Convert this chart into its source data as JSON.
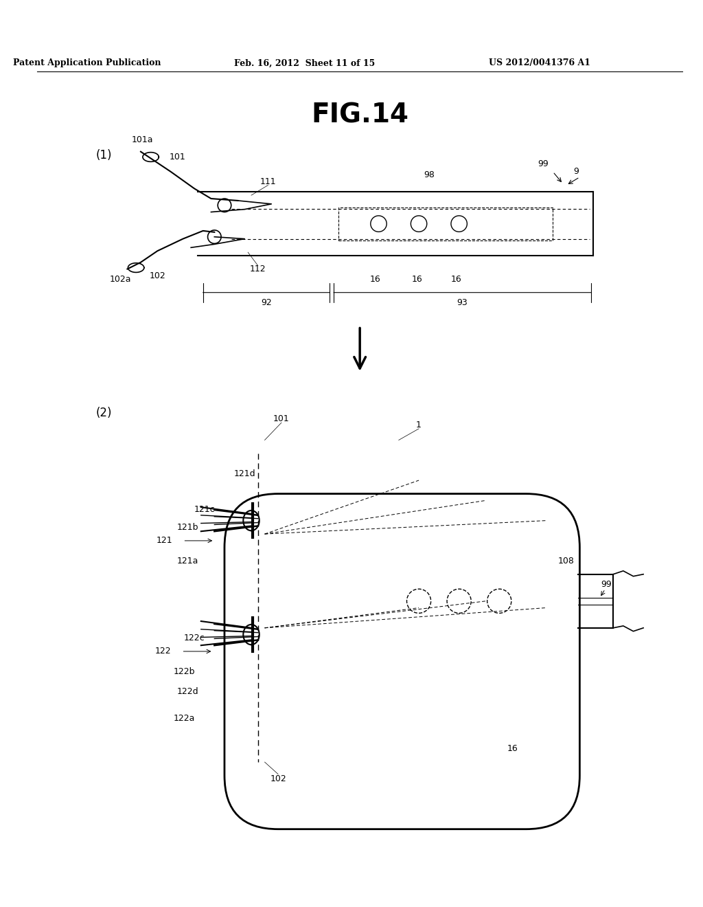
{
  "bg_color": "#ffffff",
  "header_text": "Patent Application Publication",
  "header_date": "Feb. 16, 2012  Sheet 11 of 15",
  "header_patent": "US 2012/0041376 A1",
  "fig_title": "FIG.14",
  "panel1_label": "(1)",
  "panel2_label": "(2)"
}
